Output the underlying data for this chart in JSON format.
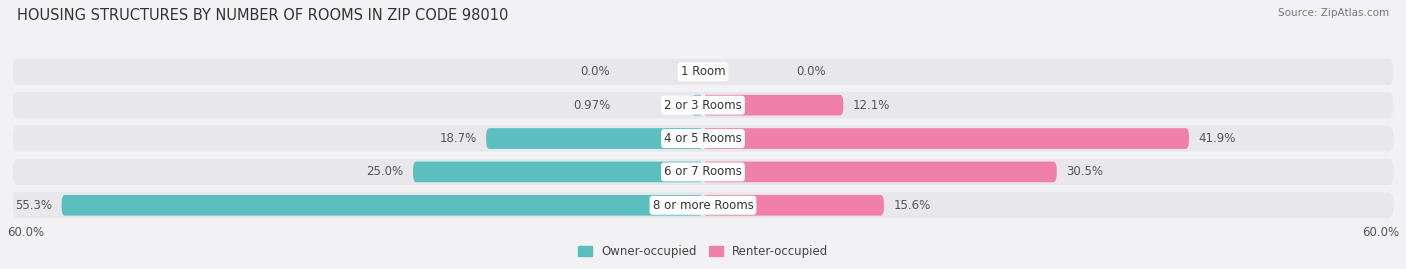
{
  "title": "HOUSING STRUCTURES BY NUMBER OF ROOMS IN ZIP CODE 98010",
  "source": "Source: ZipAtlas.com",
  "categories": [
    "1 Room",
    "2 or 3 Rooms",
    "4 or 5 Rooms",
    "6 or 7 Rooms",
    "8 or more Rooms"
  ],
  "owner_values": [
    0.0,
    0.97,
    18.7,
    25.0,
    55.3
  ],
  "renter_values": [
    0.0,
    12.1,
    41.9,
    30.5,
    15.6
  ],
  "owner_color": "#5bbfc0",
  "renter_color": "#f080a8",
  "row_bg_color": "#e8e8ec",
  "fig_bg_color": "#f2f2f5",
  "axis_max": 60.0,
  "legend_owner": "Owner-occupied",
  "legend_renter": "Renter-occupied",
  "title_fontsize": 10.5,
  "source_fontsize": 7.5,
  "label_fontsize": 8.5,
  "cat_label_fontsize": 8.5,
  "axis_label_fontsize": 8.5,
  "owner_label_color": "#555555",
  "renter_label_color": "#555555",
  "cat_label_bg": "#ffffff"
}
